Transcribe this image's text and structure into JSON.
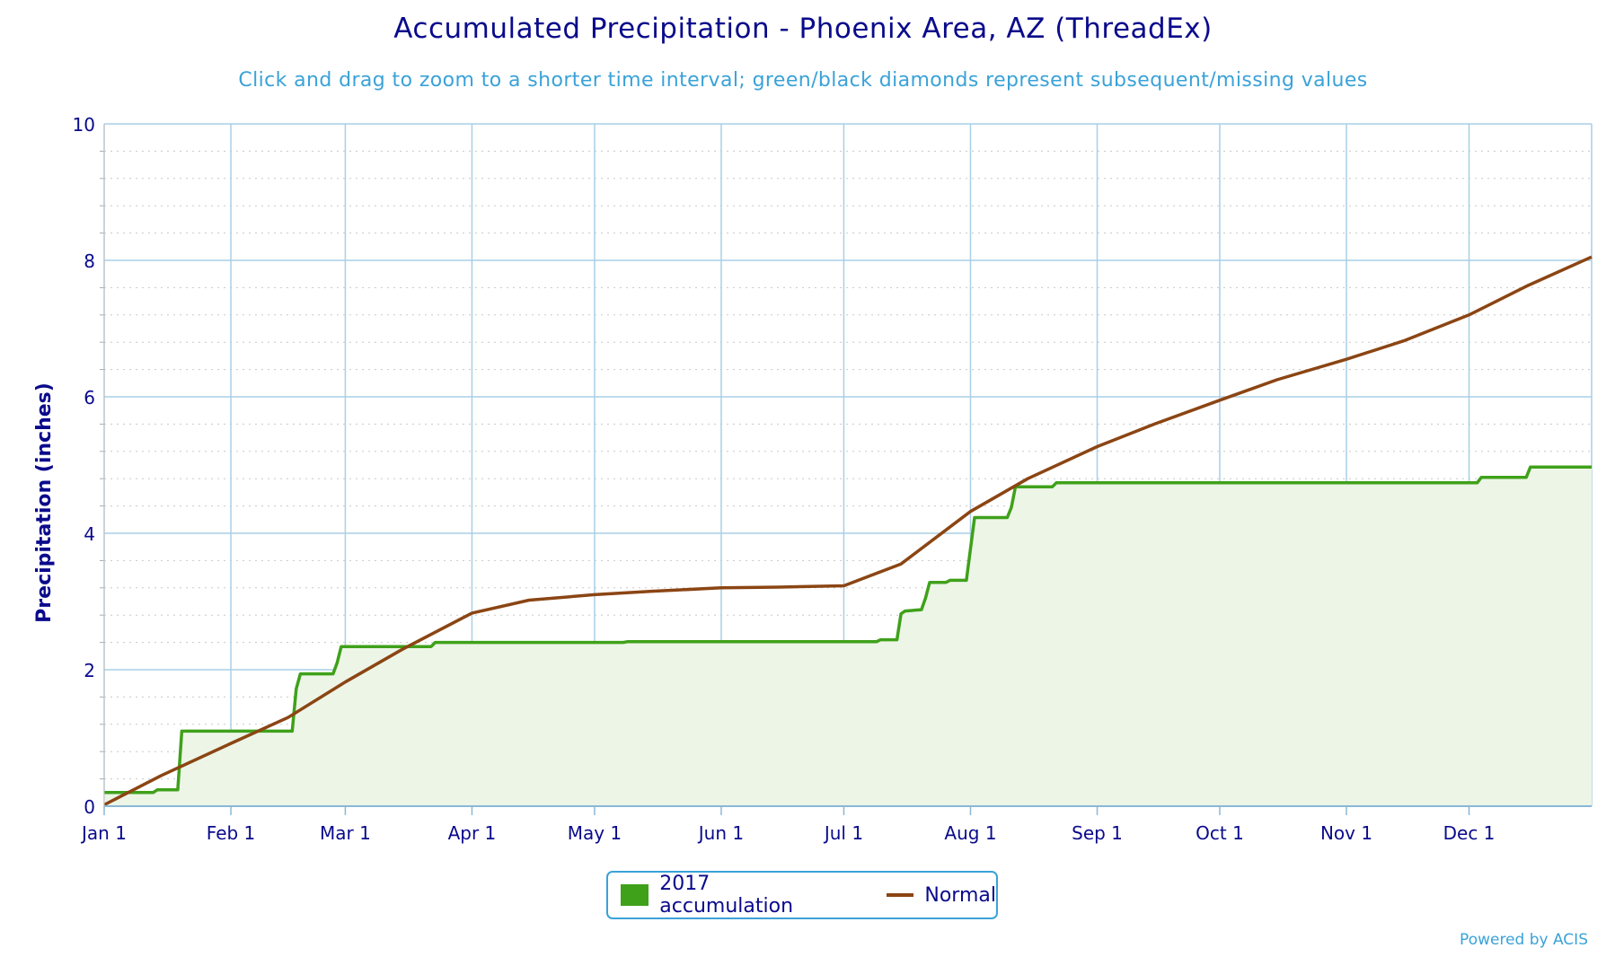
{
  "chart": {
    "title": "Accumulated Precipitation - Phoenix Area, AZ (ThreadEx)",
    "subtitle": "Click and drag to zoom to a shorter time interval; green/black diamonds represent subsequent/missing values",
    "credit": "Powered by ACIS"
  },
  "legend": {
    "items": [
      {
        "label": "2017 accumulation",
        "color": "#3fa11a",
        "marker": "square"
      },
      {
        "label": "Normal",
        "color": "#8b4513",
        "marker": "line"
      }
    ]
  },
  "chart_data": {
    "type": "line",
    "title": "Accumulated Precipitation - Phoenix Area, AZ (ThreadEx)",
    "subtitle": "Click and drag to zoom to a shorter time interval; green/black diamonds represent subsequent/missing values",
    "xlabel": "",
    "ylabel": "Precipitation (inches)",
    "xlim": [
      "2017-01-01",
      "2017-12-31"
    ],
    "ylim": [
      0,
      10
    ],
    "x_ticks": [
      {
        "date": "2017-01-01",
        "label": "Jan 1"
      },
      {
        "date": "2017-02-01",
        "label": "Feb 1"
      },
      {
        "date": "2017-03-01",
        "label": "Mar 1"
      },
      {
        "date": "2017-04-01",
        "label": "Apr 1"
      },
      {
        "date": "2017-05-01",
        "label": "May 1"
      },
      {
        "date": "2017-06-01",
        "label": "Jun 1"
      },
      {
        "date": "2017-07-01",
        "label": "Jul 1"
      },
      {
        "date": "2017-08-01",
        "label": "Aug 1"
      },
      {
        "date": "2017-09-01",
        "label": "Sep 1"
      },
      {
        "date": "2017-10-01",
        "label": "Oct 1"
      },
      {
        "date": "2017-11-01",
        "label": "Nov 1"
      },
      {
        "date": "2017-12-01",
        "label": "Dec 1"
      }
    ],
    "y_ticks": [
      0,
      2,
      4,
      6,
      8,
      10
    ],
    "y_minor_step": 0.4,
    "grid": true,
    "legend_position": "bottom-center",
    "series": [
      {
        "name": "2017 accumulation",
        "color": "#3fa11a",
        "fill": "#edf5e7",
        "style": "step-area",
        "points": [
          [
            "2017-01-01",
            0.2
          ],
          [
            "2017-01-13",
            0.2
          ],
          [
            "2017-01-14",
            0.24
          ],
          [
            "2017-01-19",
            0.24
          ],
          [
            "2017-01-20",
            1.1
          ],
          [
            "2017-02-16",
            1.1
          ],
          [
            "2017-02-17",
            1.72
          ],
          [
            "2017-02-18",
            1.94
          ],
          [
            "2017-02-26",
            1.94
          ],
          [
            "2017-02-27",
            2.1
          ],
          [
            "2017-02-28",
            2.34
          ],
          [
            "2017-03-22",
            2.34
          ],
          [
            "2017-03-23",
            2.4
          ],
          [
            "2017-05-08",
            2.4
          ],
          [
            "2017-05-09",
            2.41
          ],
          [
            "2017-07-09",
            2.41
          ],
          [
            "2017-07-10",
            2.44
          ],
          [
            "2017-07-14",
            2.44
          ],
          [
            "2017-07-15",
            2.82
          ],
          [
            "2017-07-16",
            2.86
          ],
          [
            "2017-07-20",
            2.88
          ],
          [
            "2017-07-21",
            3.05
          ],
          [
            "2017-07-22",
            3.28
          ],
          [
            "2017-07-26",
            3.28
          ],
          [
            "2017-07-27",
            3.31
          ],
          [
            "2017-07-31",
            3.31
          ],
          [
            "2017-08-02",
            4.23
          ],
          [
            "2017-08-10",
            4.23
          ],
          [
            "2017-08-11",
            4.38
          ],
          [
            "2017-08-12",
            4.68
          ],
          [
            "2017-08-21",
            4.68
          ],
          [
            "2017-08-22",
            4.74
          ],
          [
            "2017-12-03",
            4.74
          ],
          [
            "2017-12-04",
            4.82
          ],
          [
            "2017-12-15",
            4.82
          ],
          [
            "2017-12-16",
            4.97
          ],
          [
            "2017-12-31",
            4.97
          ]
        ]
      },
      {
        "name": "Normal",
        "color": "#8b4513",
        "style": "line",
        "points": [
          [
            "2017-01-01",
            0.02
          ],
          [
            "2017-01-15",
            0.45
          ],
          [
            "2017-02-01",
            0.92
          ],
          [
            "2017-02-15",
            1.3
          ],
          [
            "2017-03-01",
            1.82
          ],
          [
            "2017-03-15",
            2.3
          ],
          [
            "2017-04-01",
            2.83
          ],
          [
            "2017-04-15",
            3.02
          ],
          [
            "2017-05-01",
            3.1
          ],
          [
            "2017-05-15",
            3.15
          ],
          [
            "2017-06-01",
            3.2
          ],
          [
            "2017-06-15",
            3.21
          ],
          [
            "2017-07-01",
            3.23
          ],
          [
            "2017-07-15",
            3.55
          ],
          [
            "2017-08-01",
            4.32
          ],
          [
            "2017-08-15",
            4.8
          ],
          [
            "2017-09-01",
            5.27
          ],
          [
            "2017-09-15",
            5.6
          ],
          [
            "2017-10-01",
            5.95
          ],
          [
            "2017-10-15",
            6.25
          ],
          [
            "2017-11-01",
            6.55
          ],
          [
            "2017-11-15",
            6.82
          ],
          [
            "2017-12-01",
            7.2
          ],
          [
            "2017-12-15",
            7.62
          ],
          [
            "2017-12-31",
            8.05
          ]
        ]
      }
    ]
  }
}
